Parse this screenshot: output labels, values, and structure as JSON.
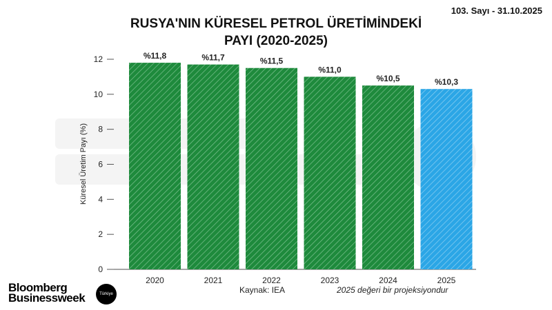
{
  "header": {
    "issue": "103. Sayı - 31.10.2025"
  },
  "footer": {
    "logo_line1": "Bloomberg",
    "logo_line2": "Businessweek",
    "logo_badge": "Türkiye",
    "source": "Kaynak: IEA",
    "note": "2025 değeri bir projeksiyondur"
  },
  "watermark": {
    "line1": "Bloomberg",
    "line2": "Businessweek",
    "badge": "Türkiye"
  },
  "colors": {
    "actual": "#1e8a3c",
    "projection": "#2ba6e6"
  },
  "chart_data": {
    "type": "bar",
    "title": "RUSYA'NIN KÜRESEL PETROL ÜRETİMİNDEKİ PAYI (2020-2025)",
    "title_line1": "RUSYA'NIN KÜRESEL PETROL ÜRETİMİNDEKİ",
    "title_line2": "PAYI (2020-2025)",
    "xlabel": "",
    "ylabel": "Küresel Üretim Payı (%)",
    "ylim": [
      0,
      12
    ],
    "yticks": [
      0,
      2,
      4,
      6,
      8,
      10,
      12
    ],
    "categories": [
      "2020",
      "2021",
      "2022",
      "2023",
      "2024",
      "2025"
    ],
    "values": [
      11.8,
      11.7,
      11.5,
      11.0,
      10.5,
      10.3
    ],
    "data_labels": [
      "%11,8",
      "%11,7",
      "%11,5",
      "%11,0",
      "%10,5",
      "%10,3"
    ],
    "projected": [
      false,
      false,
      false,
      false,
      false,
      true
    ],
    "grid": false
  }
}
